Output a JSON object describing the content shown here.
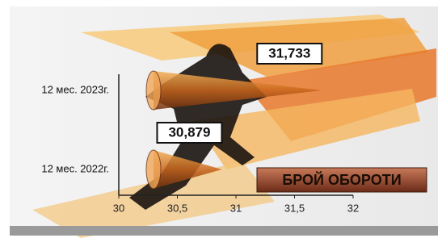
{
  "chart_data": {
    "type": "cone-bar",
    "title": "БРОЙ ОБОРОТИ",
    "categories": [
      "12 мес. 2022г.",
      "12 мес. 2023г."
    ],
    "values": [
      30.879,
      31.733
    ],
    "value_labels": [
      "30,879",
      "31,733"
    ],
    "color": "#e07a1a",
    "xlim": [
      30,
      32
    ],
    "xticks": [
      30,
      {
        "value": 30.5,
        "label": "30,5"
      },
      31,
      {
        "value": 31.5,
        "label": "31,5"
      },
      32
    ]
  }
}
